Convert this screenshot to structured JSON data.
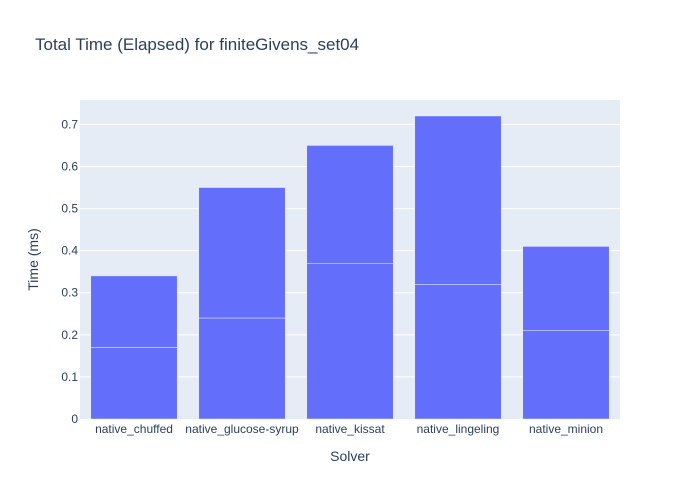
{
  "chart_data": {
    "type": "bar",
    "title": "Total Time (Elapsed) for finiteGivens_set04",
    "xlabel": "Solver",
    "ylabel": "Time (ms)",
    "categories": [
      "native_chuffed",
      "native_glucose-syrup",
      "native_kissat",
      "native_lingeling",
      "native_minion"
    ],
    "stacks": [
      [
        0.17,
        0.17
      ],
      [
        0.24,
        0.31
      ],
      [
        0.37,
        0.28
      ],
      [
        0.32,
        0.4
      ],
      [
        0.21,
        0.2
      ]
    ],
    "values": [
      0.34,
      0.55,
      0.65,
      0.72,
      0.41
    ],
    "ylim": [
      0,
      0.758
    ],
    "yticks": [
      0,
      0.1,
      0.2,
      0.3,
      0.4,
      0.5,
      0.6,
      0.7
    ],
    "ytick_labels": [
      "0",
      "0.1",
      "0.2",
      "0.3",
      "0.4",
      "0.5",
      "0.6",
      "0.7"
    ],
    "grid": true,
    "colors": {
      "bar": "#636efa",
      "plot_bg": "#e5ecf6",
      "grid": "#ffffff",
      "text": "#2a3f5f"
    }
  }
}
